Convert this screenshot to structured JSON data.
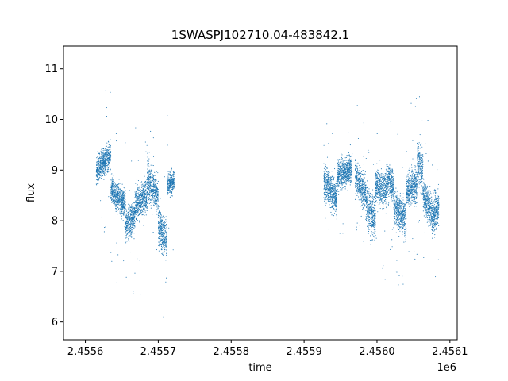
{
  "chart_data": {
    "type": "scatter",
    "title": "1SWASPJ102710.04-483842.1",
    "xlabel": "time",
    "ylabel": "flux",
    "x_offset_label": "1e6",
    "xlim": [
      2.45557,
      2.45611
    ],
    "ylim": [
      5.65,
      11.45
    ],
    "x_ticks": [
      2.4556,
      2.4557,
      2.4558,
      2.4559,
      2.456,
      2.4561
    ],
    "x_tick_labels": [
      "2.4556",
      "2.4557",
      "2.4558",
      "2.4559",
      "2.4560",
      "2.4561"
    ],
    "y_ticks": [
      6,
      7,
      8,
      9,
      10,
      11
    ],
    "y_tick_labels": [
      "6",
      "7",
      "8",
      "9",
      "10",
      "11"
    ],
    "grid": false,
    "marker_color": "#1f77b4",
    "series": [
      {
        "segments": [
          {
            "t0": 2.455615,
            "t1": 2.455635,
            "y0": 9.0,
            "y1": 9.3,
            "spread": 0.25
          },
          {
            "t0": 2.455635,
            "t1": 2.455655,
            "y0": 8.6,
            "y1": 8.3,
            "spread": 0.25
          },
          {
            "t0": 2.455655,
            "t1": 2.455668,
            "y0": 7.9,
            "y1": 8.1,
            "spread": 0.3
          },
          {
            "t0": 2.455668,
            "t1": 2.455685,
            "y0": 8.3,
            "y1": 8.5,
            "spread": 0.3
          },
          {
            "t0": 2.455685,
            "t1": 2.455692,
            "y0": 8.9,
            "y1": 8.6,
            "spread": 0.35
          },
          {
            "t0": 2.455692,
            "t1": 2.4557,
            "y0": 8.7,
            "y1": 8.5,
            "spread": 0.3
          },
          {
            "t0": 2.4557,
            "t1": 2.455712,
            "y0": 7.9,
            "y1": 7.6,
            "spread": 0.35
          },
          {
            "t0": 2.455712,
            "t1": 2.455722,
            "y0": 8.7,
            "y1": 8.8,
            "spread": 0.2
          },
          {
            "t0": 2.455927,
            "t1": 2.455945,
            "y0": 8.8,
            "y1": 8.4,
            "spread": 0.3
          },
          {
            "t0": 2.455945,
            "t1": 2.455966,
            "y0": 8.9,
            "y1": 9.0,
            "spread": 0.25
          },
          {
            "t0": 2.45597,
            "t1": 2.455985,
            "y0": 8.9,
            "y1": 8.5,
            "spread": 0.3
          },
          {
            "t0": 2.455985,
            "t1": 2.455998,
            "y0": 8.3,
            "y1": 8.0,
            "spread": 0.35
          },
          {
            "t0": 2.455998,
            "t1": 2.456013,
            "y0": 8.7,
            "y1": 8.6,
            "spread": 0.3
          },
          {
            "t0": 2.456013,
            "t1": 2.456023,
            "y0": 8.8,
            "y1": 8.7,
            "spread": 0.3
          },
          {
            "t0": 2.456023,
            "t1": 2.45604,
            "y0": 8.3,
            "y1": 8.0,
            "spread": 0.3
          },
          {
            "t0": 2.45604,
            "t1": 2.456055,
            "y0": 8.6,
            "y1": 8.7,
            "spread": 0.3
          },
          {
            "t0": 2.456055,
            "t1": 2.456063,
            "y0": 9.2,
            "y1": 9.0,
            "spread": 0.35
          },
          {
            "t0": 2.456063,
            "t1": 2.456075,
            "y0": 8.5,
            "y1": 8.2,
            "spread": 0.3
          },
          {
            "t0": 2.456075,
            "t1": 2.456085,
            "y0": 8.0,
            "y1": 8.3,
            "spread": 0.35
          }
        ]
      }
    ]
  }
}
